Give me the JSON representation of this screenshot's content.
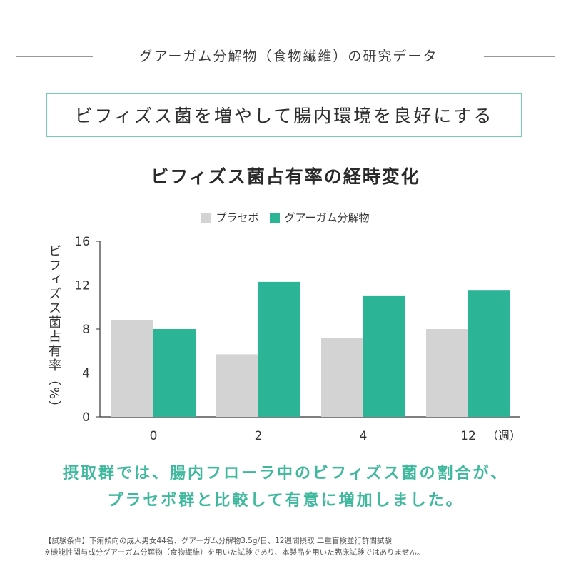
{
  "header": {
    "title": "グアーガム分解物（食物繊維）の研究データ"
  },
  "tagline": "ビフィズス菌を増やして腸内環境を良好にする",
  "chart_data": {
    "type": "bar",
    "title": "ビフィズス菌占有率の経時変化",
    "ylabel": "ビフィズス菌占有率（%）",
    "xunit": "（週）",
    "categories": [
      "0",
      "2",
      "4",
      "12"
    ],
    "ylim": [
      0,
      16
    ],
    "yticks": [
      0,
      4,
      8,
      12,
      16
    ],
    "grid": false,
    "legend_position": "top-center",
    "series": [
      {
        "name": "プラセボ",
        "color": "#d3d3d3",
        "values": [
          8.8,
          5.7,
          7.2,
          8.0
        ]
      },
      {
        "name": "グアーガム分解物",
        "color": "#2bb596",
        "values": [
          8.0,
          12.3,
          11.0,
          11.5
        ]
      }
    ]
  },
  "conclusion": {
    "line1": "摂取群では、腸内フローラ中のビフィズス菌の割合が、",
    "line2": "プラセボ群と比較して有意に増加しました。"
  },
  "footnote": {
    "line1": "【試験条件】下痢傾向の成人男女44名、グアーガム分解物3.5g/日、12週間摂取 二重盲検並行群間試験",
    "line2": "※機能性関与成分グアーガム分解物（食物繊維）を用いた試験であり、本製品を用いた臨床試験ではありません。"
  }
}
